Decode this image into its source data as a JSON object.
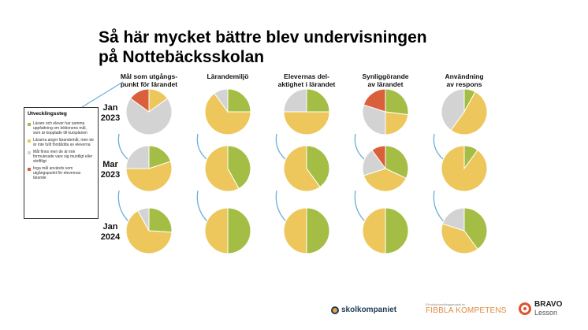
{
  "title": {
    "line1": "Så här mycket bättre blev undervisningen",
    "line2": "på Nottebäcksskolan"
  },
  "colors": {
    "green": "#a4bd45",
    "yellow": "#edc75c",
    "gray": "#d3d3d3",
    "red": "#d9603a",
    "arrow": "#6aaed8"
  },
  "legend": {
    "title": "Utvecklingssteg",
    "items": [
      {
        "key": "green",
        "text": "Lärare och elever har samma uppfattning om lektionens mål, som är kopplade till kursplanen"
      },
      {
        "key": "yellow",
        "text": "Lärarna anger lärandemål, men de är inte fullt förstådda av eleverna"
      },
      {
        "key": "gray",
        "text": "Mål finns men de är inte formulerade vare sig muntligt eller skriftligt"
      },
      {
        "key": "red",
        "text": "Inga mål används som utgångspunkt för elevernas lärande"
      }
    ]
  },
  "chart_data": {
    "type": "pie",
    "series_order": [
      "green",
      "yellow",
      "gray",
      "red"
    ],
    "columns": [
      [
        "Mål som utgångs-",
        "punkt för lärandet"
      ],
      [
        "Lärandemiljö"
      ],
      [
        "Elevernas del-",
        "aktighet i lärandet"
      ],
      [
        "Synliggörande",
        "av lärandet"
      ],
      [
        "Användning",
        "av respons"
      ]
    ],
    "rows": [
      [
        "Jan",
        "2023"
      ],
      [
        "Mar",
        "2023"
      ],
      [
        "Jan",
        "2024"
      ]
    ],
    "values": [
      [
        [
          0,
          15,
          70,
          15
        ],
        [
          25,
          65,
          10,
          0
        ],
        [
          25,
          50,
          25,
          0
        ],
        [
          27,
          23,
          30,
          20
        ],
        [
          8,
          52,
          40,
          0
        ]
      ],
      [
        [
          20,
          55,
          25,
          0
        ],
        [
          42,
          58,
          0,
          0
        ],
        [
          40,
          60,
          0,
          0
        ],
        [
          32,
          38,
          20,
          10
        ],
        [
          10,
          90,
          0,
          0
        ]
      ],
      [
        [
          26,
          66,
          8,
          0
        ],
        [
          50,
          50,
          0,
          0
        ],
        [
          50,
          50,
          0,
          0
        ],
        [
          50,
          50,
          0,
          0
        ],
        [
          40,
          40,
          20,
          0
        ]
      ]
    ],
    "unit": "%"
  },
  "footer": {
    "skolkompaniet": "skolkompaniet",
    "fibbla_sub": "Ett skolutvecklingsprojekt av",
    "fibbla_main": "FIBBLA KOMPETENS",
    "bravo": "BRAVO",
    "lesson": "Lesson"
  }
}
